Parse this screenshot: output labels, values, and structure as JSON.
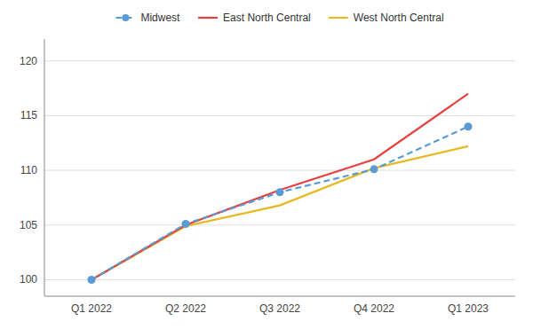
{
  "chart_data": {
    "type": "line",
    "categories": [
      "Q1 2022",
      "Q2 2022",
      "Q3 2022",
      "Q4 2022",
      "Q1 2023"
    ],
    "series": [
      {
        "name": "Midwest",
        "color": "#5b9bd5",
        "values": [
          100.0,
          105.1,
          108.0,
          110.1,
          114.0
        ],
        "marker": "circle",
        "line_style": "dashed"
      },
      {
        "name": "East North Central",
        "color": "#e84040",
        "values": [
          100.0,
          105.0,
          108.2,
          111.0,
          117.0
        ],
        "line_style": "solid"
      },
      {
        "name": "West North Central",
        "color": "#e8b820",
        "values": [
          100.0,
          104.9,
          106.8,
          110.2,
          112.2
        ],
        "line_style": "solid"
      }
    ],
    "ylim": [
      98.5,
      122
    ],
    "yticks": [
      100,
      105,
      110,
      115,
      120
    ],
    "grid": true,
    "legend": "top"
  }
}
